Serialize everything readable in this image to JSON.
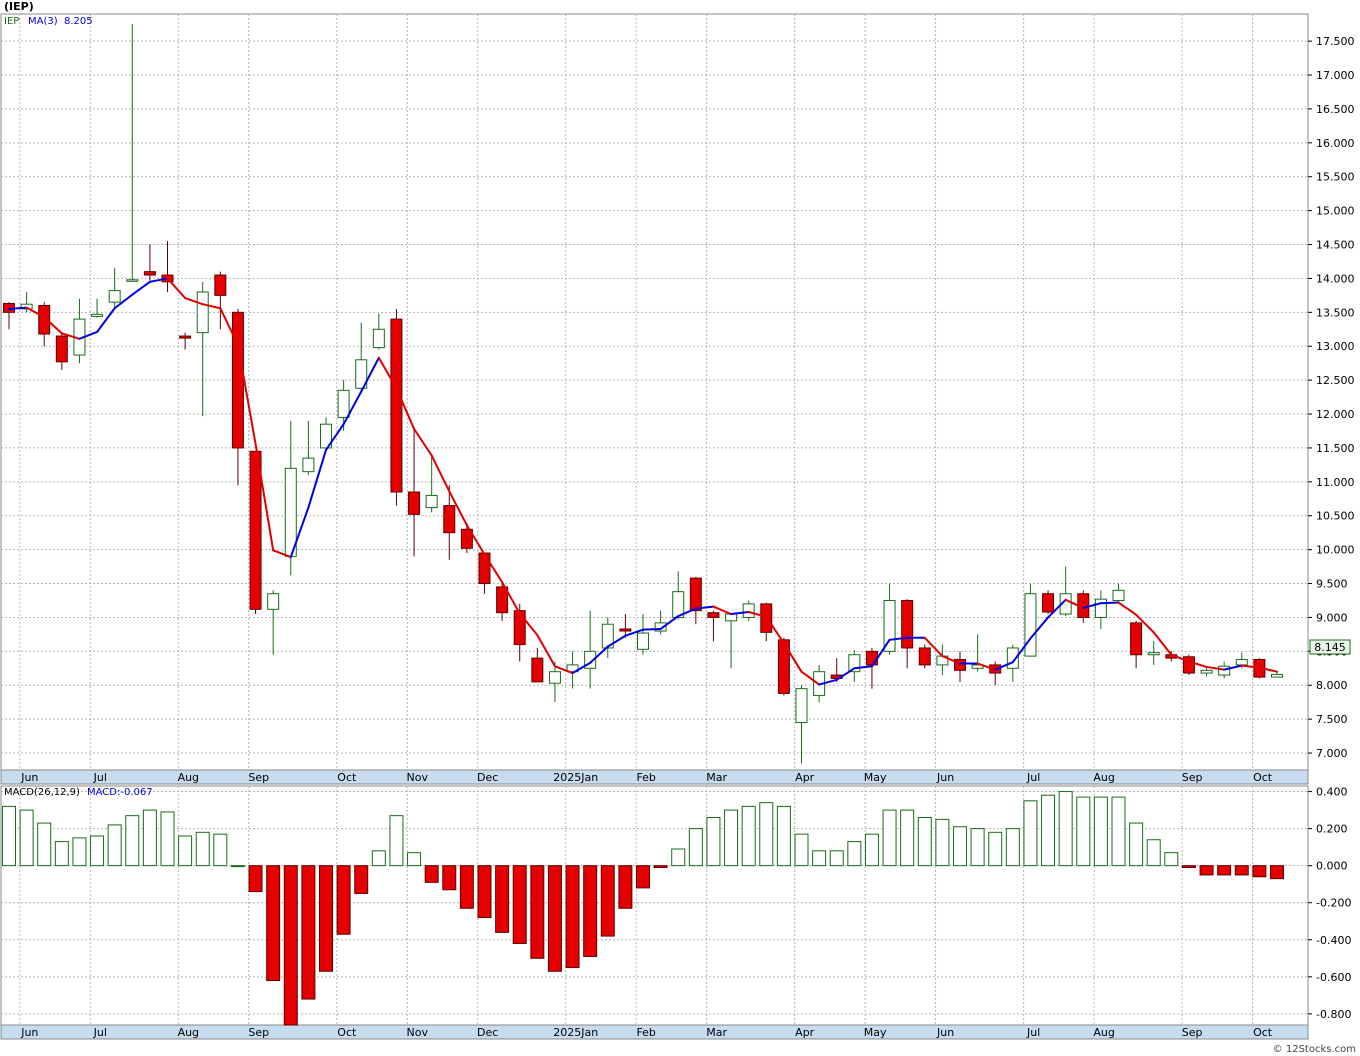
{
  "header": {
    "symbol": "(IEP)",
    "ticker": "IEP",
    "ma_label": "MA(3)",
    "ma_value": "8.205"
  },
  "macd_header": {
    "label": "MACD(26,12,9)",
    "value_label": "MACD:-0.067"
  },
  "last_price": "8.145",
  "footer": {
    "copyright": "© 12Stocks.com"
  },
  "colors": {
    "up_fill": "#ffffff",
    "up_stroke": "#1a6b1a",
    "down_fill": "#e50000",
    "ma_up": "#0000e0",
    "ma_down": "#e00000",
    "grid": "#b4b4b4",
    "axis_band": "#c8dcf0",
    "price_badge": "#e8f8e8"
  },
  "chart_data": [
    {
      "type": "candlestick",
      "title": "",
      "ylim": [
        6.75,
        17.9
      ],
      "y_ticks": [
        "7.000",
        "7.500",
        "8.000",
        "8.500",
        "9.000",
        "9.500",
        "10.000",
        "10.500",
        "11.000",
        "11.500",
        "12.000",
        "12.500",
        "13.000",
        "13.500",
        "14.000",
        "14.500",
        "15.000",
        "15.500",
        "16.000",
        "16.500",
        "17.000",
        "17.500"
      ],
      "x_labels": [
        "Jun",
        "Jul",
        "Aug",
        "Sep",
        "Oct",
        "Nov",
        "Dec",
        "2025Jan",
        "Feb",
        "Mar",
        "Apr",
        "May",
        "Jun",
        "Jul",
        "Aug",
        "Sep",
        "Oct"
      ],
      "grid": true,
      "candles": [
        {
          "o": 13.63,
          "h": 13.65,
          "l": 13.25,
          "c": 13.5
        },
        {
          "o": 13.55,
          "h": 13.8,
          "l": 13.5,
          "c": 13.62
        },
        {
          "o": 13.6,
          "h": 13.65,
          "l": 13.0,
          "c": 13.18
        },
        {
          "o": 13.15,
          "h": 13.2,
          "l": 12.65,
          "c": 12.77
        },
        {
          "o": 12.87,
          "h": 13.7,
          "l": 12.75,
          "c": 13.4
        },
        {
          "o": 13.44,
          "h": 13.7,
          "l": 13.42,
          "c": 13.47
        },
        {
          "o": 13.65,
          "h": 14.15,
          "l": 13.55,
          "c": 13.82
        },
        {
          "o": 13.97,
          "h": 17.75,
          "l": 13.95,
          "c": 13.98
        },
        {
          "o": 14.1,
          "h": 14.5,
          "l": 13.97,
          "c": 14.05
        },
        {
          "o": 14.05,
          "h": 14.55,
          "l": 13.8,
          "c": 13.95
        },
        {
          "o": 13.15,
          "h": 13.2,
          "l": 12.95,
          "c": 13.12
        },
        {
          "o": 13.2,
          "h": 13.95,
          "l": 11.97,
          "c": 13.8
        },
        {
          "o": 14.05,
          "h": 14.1,
          "l": 13.25,
          "c": 13.75
        },
        {
          "o": 13.5,
          "h": 13.55,
          "l": 10.95,
          "c": 11.5
        },
        {
          "o": 11.45,
          "h": 11.45,
          "l": 9.05,
          "c": 9.12
        },
        {
          "o": 9.12,
          "h": 9.4,
          "l": 8.45,
          "c": 9.35
        },
        {
          "o": 9.9,
          "h": 11.9,
          "l": 9.62,
          "c": 11.2
        },
        {
          "o": 11.15,
          "h": 11.9,
          "l": 11.1,
          "c": 11.35
        },
        {
          "o": 11.5,
          "h": 11.95,
          "l": 11.45,
          "c": 11.85
        },
        {
          "o": 11.95,
          "h": 12.5,
          "l": 11.75,
          "c": 12.35
        },
        {
          "o": 12.38,
          "h": 13.35,
          "l": 12.3,
          "c": 12.8
        },
        {
          "o": 12.98,
          "h": 13.48,
          "l": 12.95,
          "c": 13.25
        },
        {
          "o": 13.4,
          "h": 13.55,
          "l": 10.65,
          "c": 10.85
        },
        {
          "o": 10.85,
          "h": 11.8,
          "l": 9.9,
          "c": 10.52
        },
        {
          "o": 10.62,
          "h": 11.4,
          "l": 10.55,
          "c": 10.8
        },
        {
          "o": 10.65,
          "h": 10.95,
          "l": 9.85,
          "c": 10.25
        },
        {
          "o": 10.3,
          "h": 10.4,
          "l": 9.95,
          "c": 10.02
        },
        {
          "o": 9.95,
          "h": 9.95,
          "l": 9.35,
          "c": 9.5
        },
        {
          "o": 9.45,
          "h": 9.5,
          "l": 8.95,
          "c": 9.07
        },
        {
          "o": 9.1,
          "h": 9.2,
          "l": 8.35,
          "c": 8.6
        },
        {
          "o": 8.4,
          "h": 8.55,
          "l": 8.05,
          "c": 8.05
        },
        {
          "o": 8.03,
          "h": 8.35,
          "l": 7.75,
          "c": 8.2
        },
        {
          "o": 8.2,
          "h": 8.5,
          "l": 7.95,
          "c": 8.3
        },
        {
          "o": 8.25,
          "h": 9.1,
          "l": 7.95,
          "c": 8.5
        },
        {
          "o": 8.55,
          "h": 9.0,
          "l": 8.4,
          "c": 8.9
        },
        {
          "o": 8.83,
          "h": 9.05,
          "l": 8.7,
          "c": 8.8
        },
        {
          "o": 8.53,
          "h": 9.05,
          "l": 8.45,
          "c": 8.77
        },
        {
          "o": 8.8,
          "h": 9.1,
          "l": 8.75,
          "c": 8.92
        },
        {
          "o": 9.0,
          "h": 9.68,
          "l": 8.97,
          "c": 9.38
        },
        {
          "o": 9.58,
          "h": 9.6,
          "l": 8.9,
          "c": 9.1
        },
        {
          "o": 9.07,
          "h": 9.1,
          "l": 8.65,
          "c": 9.0
        },
        {
          "o": 8.95,
          "h": 9.0,
          "l": 8.25,
          "c": 9.05
        },
        {
          "o": 9.0,
          "h": 9.25,
          "l": 8.95,
          "c": 9.2
        },
        {
          "o": 9.2,
          "h": 9.22,
          "l": 8.65,
          "c": 8.78
        },
        {
          "o": 8.67,
          "h": 8.7,
          "l": 7.85,
          "c": 7.88
        },
        {
          "o": 7.45,
          "h": 8.0,
          "l": 6.85,
          "c": 7.95
        },
        {
          "o": 7.85,
          "h": 8.3,
          "l": 7.75,
          "c": 8.2
        },
        {
          "o": 8.15,
          "h": 8.4,
          "l": 8.05,
          "c": 8.1
        },
        {
          "o": 8.2,
          "h": 8.52,
          "l": 8.05,
          "c": 8.45
        },
        {
          "o": 8.5,
          "h": 8.55,
          "l": 7.95,
          "c": 8.3
        },
        {
          "o": 8.5,
          "h": 9.5,
          "l": 8.45,
          "c": 9.25
        },
        {
          "o": 9.25,
          "h": 9.27,
          "l": 8.25,
          "c": 8.55
        },
        {
          "o": 8.55,
          "h": 8.6,
          "l": 8.25,
          "c": 8.3
        },
        {
          "o": 8.3,
          "h": 8.6,
          "l": 8.15,
          "c": 8.43
        },
        {
          "o": 8.38,
          "h": 8.5,
          "l": 8.05,
          "c": 8.22
        },
        {
          "o": 8.25,
          "h": 8.75,
          "l": 8.2,
          "c": 8.3
        },
        {
          "o": 8.3,
          "h": 8.35,
          "l": 8.0,
          "c": 8.18
        },
        {
          "o": 8.25,
          "h": 8.6,
          "l": 8.05,
          "c": 8.55
        },
        {
          "o": 8.43,
          "h": 9.5,
          "l": 8.42,
          "c": 9.35
        },
        {
          "o": 9.35,
          "h": 9.4,
          "l": 9.05,
          "c": 9.08
        },
        {
          "o": 9.05,
          "h": 9.75,
          "l": 9.02,
          "c": 9.35
        },
        {
          "o": 9.35,
          "h": 9.4,
          "l": 8.92,
          "c": 9.0
        },
        {
          "o": 9.0,
          "h": 9.4,
          "l": 8.83,
          "c": 9.27
        },
        {
          "o": 9.25,
          "h": 9.5,
          "l": 9.2,
          "c": 9.4
        },
        {
          "o": 8.92,
          "h": 8.95,
          "l": 8.25,
          "c": 8.45
        },
        {
          "o": 8.45,
          "h": 8.65,
          "l": 8.3,
          "c": 8.48
        },
        {
          "o": 8.45,
          "h": 8.5,
          "l": 8.35,
          "c": 8.4
        },
        {
          "o": 8.42,
          "h": 8.45,
          "l": 8.15,
          "c": 8.18
        },
        {
          "o": 8.18,
          "h": 8.27,
          "l": 8.13,
          "c": 8.22
        },
        {
          "o": 8.15,
          "h": 8.35,
          "l": 8.1,
          "c": 8.28
        },
        {
          "o": 8.3,
          "h": 8.48,
          "l": 8.25,
          "c": 8.38
        },
        {
          "o": 8.38,
          "h": 8.4,
          "l": 8.1,
          "c": 8.12
        },
        {
          "o": 8.12,
          "h": 8.2,
          "l": 8.12,
          "c": 8.16
        }
      ],
      "ma": [
        13.55,
        13.57,
        13.43,
        13.19,
        13.11,
        13.21,
        13.56,
        13.76,
        13.95,
        14.0,
        13.71,
        13.62,
        13.56,
        13.02,
        11.56,
        9.99,
        9.89,
        10.62,
        11.47,
        11.85,
        12.33,
        12.83,
        12.38,
        11.78,
        11.39,
        10.86,
        10.36,
        9.93,
        9.52,
        9.06,
        8.74,
        8.28,
        8.18,
        8.33,
        8.57,
        8.73,
        8.82,
        8.83,
        9.02,
        9.13,
        9.16,
        9.05,
        9.08,
        9.01,
        8.62,
        8.2,
        8.01,
        8.08,
        8.25,
        8.28,
        8.67,
        8.7,
        8.7,
        8.43,
        8.32,
        8.32,
        8.23,
        8.34,
        8.69,
        9.0,
        9.26,
        9.14,
        9.21,
        9.22,
        9.04,
        8.78,
        8.45,
        8.35,
        8.27,
        8.23,
        8.29,
        8.26,
        8.2
      ]
    },
    {
      "type": "bar",
      "title": "",
      "ylim": [
        -0.86,
        0.43
      ],
      "y_ticks": [
        "0.400",
        "0.200",
        "0.000",
        "-0.200",
        "-0.400",
        "-0.600",
        "-0.800"
      ],
      "x_labels": [
        "Jun",
        "Jul",
        "Aug",
        "Sep",
        "Oct",
        "Nov",
        "Dec",
        "2025Jan",
        "Feb",
        "Mar",
        "Apr",
        "May",
        "Jun",
        "Jul",
        "Aug",
        "Sep",
        "Oct"
      ],
      "grid": true,
      "values": [
        0.32,
        0.3,
        0.23,
        0.13,
        0.15,
        0.16,
        0.22,
        0.27,
        0.3,
        0.29,
        0.16,
        0.18,
        0.17,
        0.0,
        -0.14,
        -0.62,
        -0.86,
        -0.72,
        -0.57,
        -0.37,
        -0.15,
        0.08,
        0.27,
        0.07,
        -0.09,
        -0.13,
        -0.23,
        -0.28,
        -0.36,
        -0.42,
        -0.5,
        -0.57,
        -0.55,
        -0.49,
        -0.38,
        -0.23,
        -0.12,
        -0.01,
        0.09,
        0.2,
        0.26,
        0.3,
        0.32,
        0.34,
        0.32,
        0.17,
        0.08,
        0.08,
        0.13,
        0.17,
        0.3,
        0.3,
        0.26,
        0.25,
        0.21,
        0.2,
        0.18,
        0.2,
        0.35,
        0.38,
        0.4,
        0.37,
        0.37,
        0.37,
        0.23,
        0.14,
        0.07,
        -0.01,
        -0.05,
        -0.05,
        -0.05,
        -0.06,
        -0.07
      ]
    }
  ]
}
